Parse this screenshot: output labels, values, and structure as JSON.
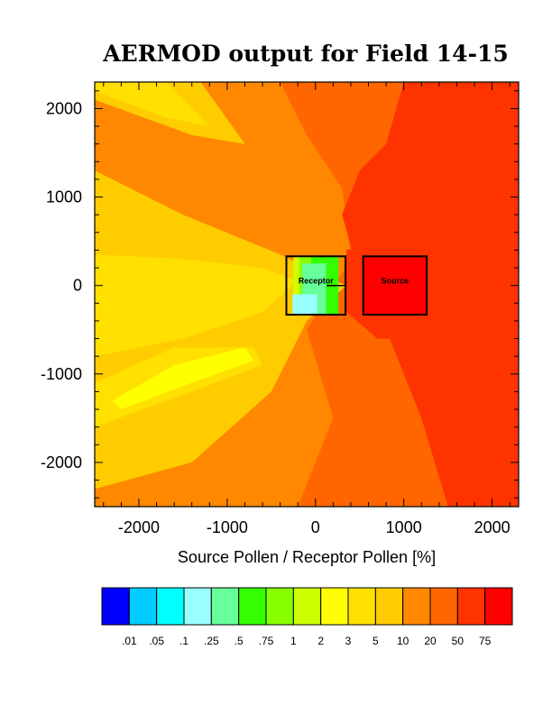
{
  "chart_data": {
    "type": "heatmap",
    "title": "AERMOD output for Field 14-15",
    "xlabel": "Source Pollen / Receptor Pollen [%]",
    "ylabel": "",
    "xlim": [
      -2500,
      2300
    ],
    "ylim": [
      -2500,
      2300
    ],
    "x_ticks": [
      -2000,
      -1000,
      0,
      1000,
      2000
    ],
    "x_tick_labels": [
      "-2000",
      "-1000",
      "0",
      "1000",
      "2000"
    ],
    "y_ticks": [
      2000,
      1000,
      0,
      -1000,
      -2000
    ],
    "y_tick_labels": [
      "2000",
      "1000",
      "0",
      "-1000",
      "-2000"
    ],
    "colorbar": {
      "colors": [
        "#0000ff",
        "#00ccff",
        "#00ffff",
        "#99ffff",
        "#66ff99",
        "#33ff00",
        "#88ff00",
        "#ccff00",
        "#ffff00",
        "#ffe000",
        "#ffcc00",
        "#ff8800",
        "#ff6600",
        "#ff3300",
        "#ff0000"
      ],
      "level_labels": [
        ".01",
        ".05",
        ".1",
        ".25",
        ".5",
        ".75",
        "1",
        "2",
        "3",
        "5",
        "10",
        "20",
        "50",
        "75"
      ]
    },
    "boxes": [
      {
        "label": "Receptor",
        "x": [
          -330,
          340
        ],
        "y": [
          -330,
          330
        ]
      },
      {
        "label": "Source",
        "x": [
          540,
          1260
        ],
        "y": [
          -330,
          330
        ]
      }
    ],
    "regions": [
      {
        "level": 12,
        "points": [
          [
            -2500,
            2300
          ],
          [
            2300,
            2300
          ],
          [
            2300,
            -2500
          ],
          [
            -2500,
            -2500
          ]
        ]
      },
      {
        "level": 11,
        "points": [
          [
            -2500,
            2300
          ],
          [
            -400,
            2300
          ],
          [
            -100,
            1700
          ],
          [
            300,
            1100
          ],
          [
            400,
            300
          ],
          [
            -100,
            -500
          ],
          [
            200,
            -1500
          ],
          [
            -200,
            -2500
          ],
          [
            -2500,
            -2500
          ]
        ]
      },
      {
        "level": 13,
        "points": [
          [
            1000,
            2300
          ],
          [
            2300,
            2300
          ],
          [
            2300,
            -2500
          ],
          [
            1500,
            -2500
          ],
          [
            1200,
            -1500
          ],
          [
            800,
            -500
          ],
          [
            500,
            100
          ],
          [
            300,
            800
          ],
          [
            500,
            1300
          ],
          [
            800,
            1600
          ]
        ]
      },
      {
        "level": 10,
        "points": [
          [
            -2500,
            1300
          ],
          [
            -1500,
            800
          ],
          [
            -400,
            350
          ],
          [
            0,
            150
          ],
          [
            350,
            0
          ],
          [
            -100,
            -400
          ],
          [
            -500,
            -1200
          ],
          [
            -1400,
            -2000
          ],
          [
            -2500,
            -2300
          ]
        ]
      },
      {
        "level": 9,
        "points": [
          [
            -2500,
            350
          ],
          [
            -1500,
            300
          ],
          [
            -600,
            200
          ],
          [
            -200,
            50
          ],
          [
            -600,
            -300
          ],
          [
            -1500,
            -600
          ],
          [
            -2500,
            -800
          ]
        ]
      },
      {
        "level": 9,
        "points": [
          [
            -2500,
            -1100
          ],
          [
            -1600,
            -700
          ],
          [
            -700,
            -700
          ],
          [
            -600,
            -900
          ],
          [
            -1400,
            -1200
          ],
          [
            -2500,
            -1600
          ]
        ]
      },
      {
        "level": 8,
        "points": [
          [
            -2300,
            -1300
          ],
          [
            -1600,
            -900
          ],
          [
            -800,
            -700
          ],
          [
            -700,
            -850
          ],
          [
            -1400,
            -1100
          ],
          [
            -2200,
            -1400
          ]
        ]
      },
      {
        "level": 10,
        "points": [
          [
            -2500,
            2300
          ],
          [
            -1300,
            2300
          ],
          [
            -800,
            1600
          ],
          [
            -1400,
            1700
          ],
          [
            -2500,
            2100
          ]
        ]
      },
      {
        "level": 9,
        "points": [
          [
            -2500,
            2300
          ],
          [
            -1700,
            2300
          ],
          [
            -1200,
            1800
          ],
          [
            -1700,
            1900
          ],
          [
            -2500,
            2200
          ]
        ]
      },
      {
        "level": 7,
        "points": [
          [
            -250,
            330
          ],
          [
            60,
            330
          ],
          [
            60,
            -330
          ],
          [
            -250,
            -330
          ]
        ]
      },
      {
        "level": 6,
        "points": [
          [
            -180,
            330
          ],
          [
            150,
            330
          ],
          [
            150,
            -330
          ],
          [
            -180,
            -330
          ]
        ]
      },
      {
        "level": 5,
        "points": [
          [
            -50,
            330
          ],
          [
            260,
            330
          ],
          [
            260,
            -330
          ],
          [
            -50,
            -330
          ]
        ]
      },
      {
        "level": 4,
        "points": [
          [
            -150,
            250
          ],
          [
            120,
            250
          ],
          [
            120,
            -330
          ],
          [
            -150,
            -330
          ]
        ]
      },
      {
        "level": 3,
        "points": [
          [
            -260,
            -100
          ],
          [
            20,
            -100
          ],
          [
            20,
            -330
          ],
          [
            -260,
            -330
          ]
        ]
      },
      {
        "level": 13,
        "points": [
          [
            350,
            400
          ],
          [
            900,
            500
          ],
          [
            1500,
            300
          ],
          [
            1600,
            -100
          ],
          [
            1200,
            -600
          ],
          [
            700,
            -600
          ],
          [
            350,
            -300
          ]
        ]
      },
      {
        "level": 14,
        "points": [
          [
            540,
            330
          ],
          [
            1260,
            330
          ],
          [
            1260,
            -330
          ],
          [
            540,
            -330
          ]
        ]
      }
    ]
  }
}
